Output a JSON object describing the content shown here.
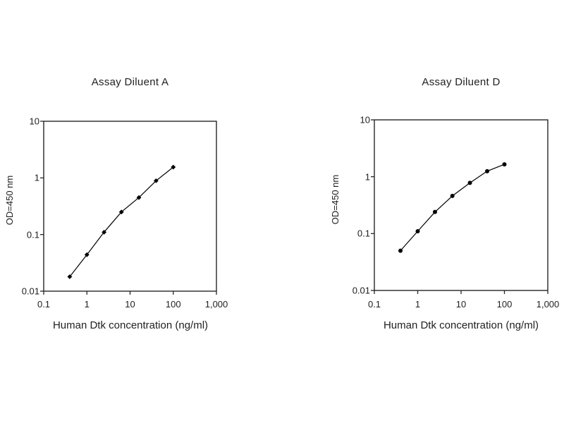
{
  "figure": {
    "background_color": "#ffffff",
    "axis_color": "#262626",
    "text_color": "#1f1f1f"
  },
  "chart_data": [
    {
      "type": "line",
      "title": "Assay Diluent A",
      "xlabel": "Human Dtk concentration (ng/ml)",
      "ylabel": "OD=450 nm",
      "xscale": "log",
      "yscale": "log",
      "xlim": [
        0.1,
        1000
      ],
      "ylim": [
        0.01,
        10
      ],
      "x_tick_labels": [
        "0.1",
        "1",
        "10",
        "100",
        "1,000"
      ],
      "y_tick_labels": [
        "0.01",
        "0.1",
        "1",
        "10"
      ],
      "x": [
        0.4,
        1,
        2.5,
        6.3,
        16,
        40,
        100
      ],
      "y": [
        0.018,
        0.044,
        0.11,
        0.25,
        0.45,
        0.89,
        1.55
      ],
      "marker": "diamond",
      "color": "#000000",
      "grid": false,
      "legend": "none"
    },
    {
      "type": "line",
      "title": "Assay Diluent D",
      "xlabel": "Human Dtk concentration (ng/ml)",
      "ylabel": "OD=450 nm",
      "xscale": "log",
      "yscale": "log",
      "xlim": [
        0.1,
        1000
      ],
      "ylim": [
        0.01,
        10
      ],
      "x_tick_labels": [
        "0.1",
        "1",
        "10",
        "100",
        "1,000"
      ],
      "y_tick_labels": [
        "0.01",
        "0.1",
        "1",
        "10"
      ],
      "x": [
        0.4,
        1,
        2.5,
        6.3,
        16,
        40,
        100
      ],
      "y": [
        0.05,
        0.11,
        0.24,
        0.46,
        0.78,
        1.25,
        1.65
      ],
      "marker": "circle",
      "color": "#000000",
      "grid": false,
      "legend": "none"
    }
  ]
}
